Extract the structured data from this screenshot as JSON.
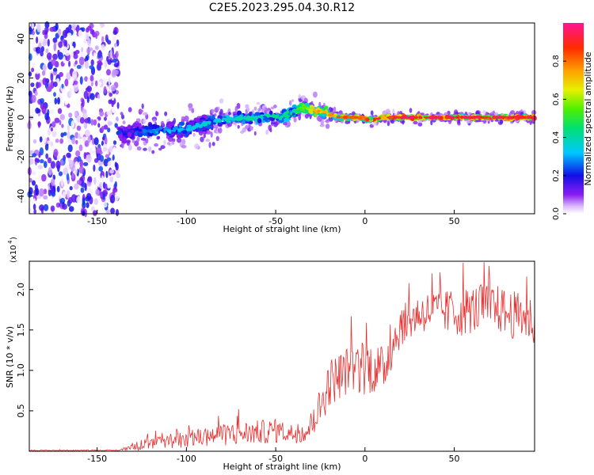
{
  "title": "C2E5.2023.295.04.30.R12",
  "chart_data": [
    {
      "type": "heatmap",
      "title": "C2E5.2023.295.04.30.R12",
      "xlabel": "Height of straight line (km)",
      "ylabel": "Frequency (Hz)",
      "xlim": [
        -188,
        95
      ],
      "ylim": [
        -49,
        48
      ],
      "xticks": [
        "-150",
        "-100",
        "-50",
        "0",
        "50"
      ],
      "yticks": [
        "40",
        "20",
        "0",
        "-20",
        "-40"
      ],
      "ridge": {
        "description": "frequency of peak spectral amplitude vs height",
        "x": [
          -135,
          -120,
          -100,
          -80,
          -60,
          -45,
          -35,
          -25,
          -15,
          -5,
          0,
          5,
          10,
          20,
          50,
          95
        ],
        "y": [
          -8,
          -7,
          -6,
          -1,
          0,
          1,
          5,
          3,
          0,
          0,
          -1,
          -1,
          0,
          0,
          0,
          0
        ],
        "amplitude": [
          0.25,
          0.3,
          0.35,
          0.4,
          0.45,
          0.45,
          0.6,
          0.8,
          0.85,
          0.9,
          0.9,
          0.95,
          0.95,
          1.0,
          1.0,
          1.0
        ]
      },
      "noise_region": {
        "x_range": [
          -188,
          -138
        ],
        "amplitude": [
          0.0,
          0.25
        ]
      }
    },
    {
      "type": "line",
      "xlabel": "Height of straight line (km)",
      "ylabel": "SNR (10 * v/v)",
      "ylabel_scale": "(x10",
      "ylabel_exponent": "4",
      "scale": 10000,
      "xlim": [
        -188,
        95
      ],
      "ylim": [
        0,
        2.35
      ],
      "xticks": [
        "-150",
        "-100",
        "-50",
        "0",
        "50"
      ],
      "yticks": [
        "2.0",
        "1.5",
        "1.0",
        "0.5"
      ],
      "color": "#e83030",
      "envelope": {
        "x": [
          -188,
          -138,
          -130,
          -110,
          -90,
          -70,
          -50,
          -40,
          -32,
          -25,
          -20,
          -10,
          0,
          10,
          15,
          20,
          30,
          40,
          50,
          60,
          70,
          80,
          90,
          95
        ],
        "mid": [
          0.01,
          0.01,
          0.06,
          0.12,
          0.18,
          0.22,
          0.25,
          0.22,
          0.25,
          0.55,
          0.85,
          1.0,
          1.05,
          1.0,
          1.3,
          1.55,
          1.7,
          1.75,
          1.7,
          1.75,
          1.8,
          1.7,
          1.65,
          1.6
        ],
        "amp": [
          0.005,
          0.005,
          0.05,
          0.1,
          0.12,
          0.15,
          0.15,
          0.12,
          0.15,
          0.25,
          0.3,
          0.3,
          0.35,
          0.3,
          0.3,
          0.25,
          0.25,
          0.25,
          0.3,
          0.3,
          0.3,
          0.3,
          0.3,
          0.3
        ]
      }
    }
  ],
  "colorbar": {
    "label": "Normalized spectral amplitude",
    "range": [
      0,
      1
    ],
    "ticks": [
      "0.0",
      "0.2",
      "0.4",
      "0.6",
      "0.8"
    ]
  }
}
